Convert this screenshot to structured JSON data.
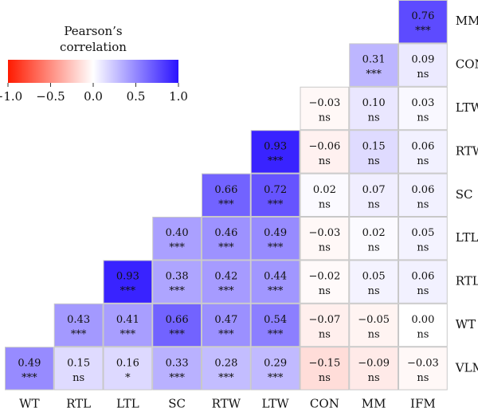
{
  "chart_data": {
    "type": "heatmap",
    "x_labels": [
      "WT",
      "RTL",
      "LTL",
      "SC",
      "RTW",
      "LTW",
      "CON",
      "MM",
      "IFM"
    ],
    "y_labels": [
      "MM",
      "CON",
      "LTW",
      "RTW",
      "SC",
      "LTL",
      "RTL",
      "WT",
      "VLM"
    ],
    "cells": [
      [
        null,
        null,
        null,
        null,
        null,
        null,
        null,
        null,
        0.76
      ],
      [
        null,
        null,
        null,
        null,
        null,
        null,
        null,
        0.31,
        0.09
      ],
      [
        null,
        null,
        null,
        null,
        null,
        null,
        -0.03,
        0.1,
        0.03
      ],
      [
        null,
        null,
        null,
        null,
        null,
        0.93,
        -0.06,
        0.15,
        0.06
      ],
      [
        null,
        null,
        null,
        null,
        0.66,
        0.72,
        0.02,
        0.07,
        0.06
      ],
      [
        null,
        null,
        null,
        0.4,
        0.46,
        0.49,
        -0.03,
        0.02,
        0.05
      ],
      [
        null,
        null,
        0.93,
        0.38,
        0.42,
        0.44,
        -0.02,
        0.05,
        0.06
      ],
      [
        null,
        0.43,
        0.41,
        0.66,
        0.47,
        0.54,
        -0.07,
        -0.05,
        0.0
      ],
      [
        0.49,
        0.15,
        0.16,
        0.33,
        0.28,
        0.29,
        -0.15,
        -0.09,
        -0.03
      ]
    ],
    "cell_labels": [
      [
        null,
        null,
        null,
        null,
        null,
        null,
        null,
        null,
        "0.76"
      ],
      [
        null,
        null,
        null,
        null,
        null,
        null,
        null,
        "0.31",
        "0.09"
      ],
      [
        null,
        null,
        null,
        null,
        null,
        null,
        "−0.03",
        "0.10",
        "0.03"
      ],
      [
        null,
        null,
        null,
        null,
        null,
        "0.93",
        "−0.06",
        "0.15",
        "0.06"
      ],
      [
        null,
        null,
        null,
        null,
        "0.66",
        "0.72",
        "0.02",
        "0.07",
        "0.06"
      ],
      [
        null,
        null,
        null,
        "0.40",
        "0.46",
        "0.49",
        "−0.03",
        "0.02",
        "0.05"
      ],
      [
        null,
        null,
        "0.93",
        "0.38",
        "0.42",
        "0.44",
        "−0.02",
        "0.05",
        "0.06"
      ],
      [
        null,
        "0.43",
        "0.41",
        "0.66",
        "0.47",
        "0.54",
        "−0.07",
        "−0.05",
        "0.00"
      ],
      [
        "0.49",
        "0.15",
        "0.16",
        "0.33",
        "0.28",
        "0.29",
        "−0.15",
        "−0.09",
        "−0.03"
      ]
    ],
    "significance": [
      [
        null,
        null,
        null,
        null,
        null,
        null,
        null,
        null,
        "***"
      ],
      [
        null,
        null,
        null,
        null,
        null,
        null,
        null,
        "***",
        "ns"
      ],
      [
        null,
        null,
        null,
        null,
        null,
        null,
        "ns",
        "ns",
        "ns"
      ],
      [
        null,
        null,
        null,
        null,
        null,
        "***",
        "ns",
        "ns",
        "ns"
      ],
      [
        null,
        null,
        null,
        null,
        "***",
        "***",
        "ns",
        "ns",
        "ns"
      ],
      [
        null,
        null,
        null,
        "***",
        "***",
        "***",
        "ns",
        "ns",
        "ns"
      ],
      [
        null,
        null,
        "***",
        "***",
        "***",
        "***",
        "ns",
        "ns",
        "ns"
      ],
      [
        null,
        "***",
        "***",
        "***",
        "***",
        "***",
        "ns",
        "ns",
        "ns"
      ],
      [
        "***",
        "ns",
        "*",
        "***",
        "***",
        "***",
        "ns",
        "ns",
        "ns"
      ]
    ],
    "legend": {
      "title_lines": [
        "Pearson’s",
        "correlation"
      ],
      "range": [
        -1.0,
        1.0
      ],
      "ticks": [
        -1.0,
        -0.5,
        0.0,
        0.5,
        1.0
      ],
      "tick_labels": [
        "−1.0",
        "−0.5",
        "0.0",
        "0.5",
        "1.0"
      ],
      "placement": "top-left"
    },
    "colors": {
      "negative": "#ff1a00",
      "zero": "#ffffff",
      "positive": "#2a12ff"
    }
  }
}
